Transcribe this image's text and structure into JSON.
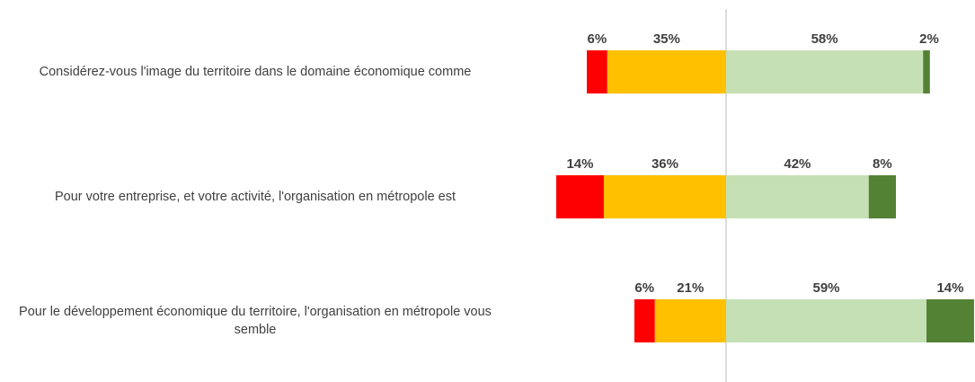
{
  "chart_data": {
    "type": "bar",
    "categories": [
      "Considérez-vous l'image du territoire dans le domaine économique comme",
      "Pour votre entreprise, et votre activité, l'organisation en métropole est",
      "Pour le développement économique du territoire, l'organisation en métropole vous semble"
    ],
    "series": [
      {
        "color": "#ff0000",
        "values": [
          6,
          14,
          6
        ],
        "value_labels": [
          "6%",
          "14%",
          "6%"
        ]
      },
      {
        "color": "#ffc000",
        "values": [
          35,
          36,
          21
        ],
        "value_labels": [
          "35%",
          "36%",
          "21%"
        ]
      },
      {
        "color": "#c5e0b4",
        "values": [
          58,
          42,
          59
        ],
        "value_labels": [
          "58%",
          "42%",
          "59%"
        ]
      },
      {
        "color": "#548235",
        "values": [
          2,
          8,
          14
        ],
        "value_labels": [
          "2%",
          "8%",
          "14%"
        ]
      }
    ]
  }
}
